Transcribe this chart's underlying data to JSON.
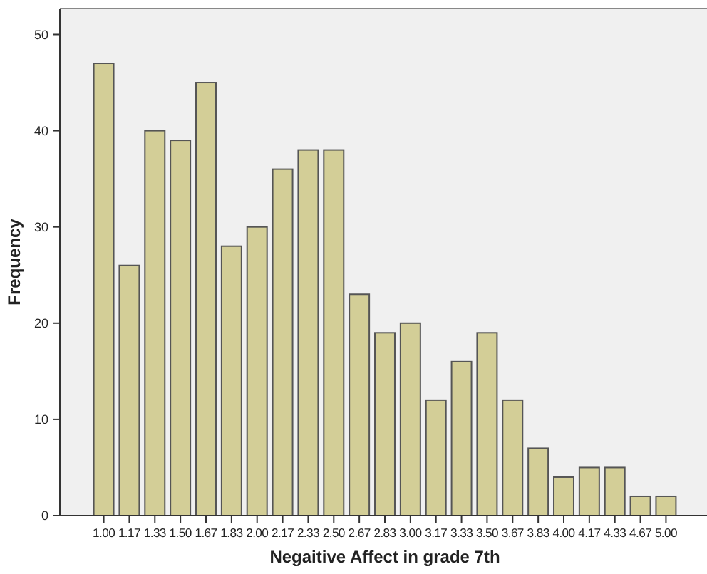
{
  "chart_data": {
    "type": "bar",
    "xlabel": "Negaitive Affect in grade 7th",
    "ylabel": "Frequency",
    "categories": [
      "1.00",
      "1.17",
      "1.33",
      "1.50",
      "1.67",
      "1.83",
      "2.00",
      "2.17",
      "2.33",
      "2.50",
      "2.67",
      "2.83",
      "3.00",
      "3.17",
      "3.33",
      "3.50",
      "3.67",
      "3.83",
      "4.00",
      "4.17",
      "4.33",
      "4.67",
      "5.00"
    ],
    "values": [
      47,
      26,
      40,
      39,
      45,
      28,
      30,
      36,
      38,
      38,
      23,
      19,
      20,
      12,
      16,
      19,
      12,
      7,
      4,
      5,
      5,
      2,
      2
    ],
    "color": "#d3ce97",
    "ylim": [
      0,
      52.7
    ],
    "yticks": [
      0,
      10,
      20,
      30,
      40,
      50
    ],
    "grid": false
  }
}
